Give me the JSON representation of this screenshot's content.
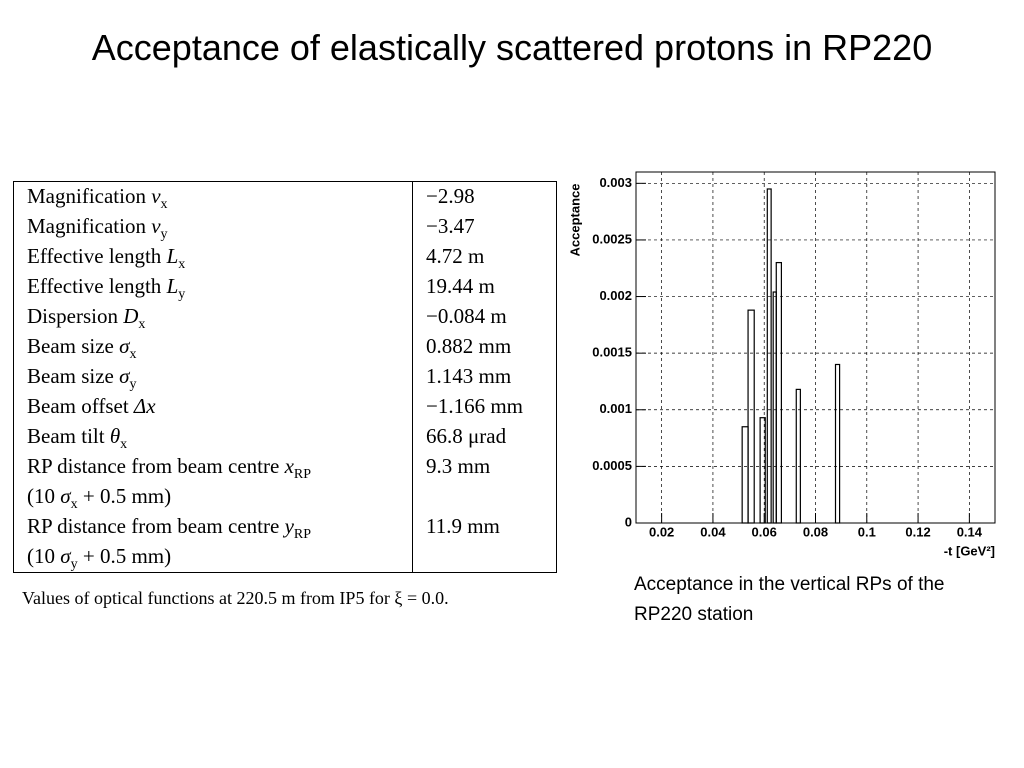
{
  "title": "Acceptance of elastically scattered protons in RP220",
  "table": {
    "rows": [
      {
        "label": "Magnification ",
        "symbol": "v",
        "sub": "x",
        "value": "−2.98"
      },
      {
        "label": "Magnification ",
        "symbol": "v",
        "sub": "y",
        "value": "−3.47"
      },
      {
        "label": "Effective length ",
        "symbol": "L",
        "sub": "x",
        "value": "4.72 m"
      },
      {
        "label": "Effective length ",
        "symbol": "L",
        "sub": "y",
        "value": "19.44 m"
      },
      {
        "label": "Dispersion ",
        "symbol": "D",
        "sub": "x",
        "value": "−0.084 m"
      },
      {
        "label": "Beam size ",
        "symbol": "σ",
        "sub": "x",
        "value": "0.882 mm"
      },
      {
        "label": "Beam size ",
        "symbol": "σ",
        "sub": "y",
        "value": "1.143 mm"
      },
      {
        "label": "Beam offset ",
        "symbol": "Δx",
        "value": "−1.166 mm"
      },
      {
        "label": "Beam tilt ",
        "symbol": "θ",
        "sub": "x",
        "value": "66.8 μrad"
      },
      {
        "label": "RP distance from beam centre ",
        "symbol": "x",
        "sub": "RP",
        "value": "9.3 mm",
        "note": {
          "pre": "(10 ",
          "symbol": "σ",
          "sub": "x",
          "post": " + 0.5 mm)"
        }
      },
      {
        "label": "RP distance from beam centre ",
        "symbol": "y",
        "sub": "RP",
        "value": "11.9 mm",
        "note": {
          "pre": "(10 ",
          "symbol": "σ",
          "sub": "y",
          "post": " + 0.5 mm)"
        }
      }
    ],
    "caption": "Values of optical functions at 220.5 m from IP5 for ξ = 0.0."
  },
  "chart_data": {
    "type": "histogram",
    "ylabel": "Acceptance",
    "xlabel": "-t [GeV²]",
    "bins": [
      0.0514,
      0.0537,
      0.0561,
      0.0584,
      0.0604,
      0.0612,
      0.0627,
      0.0635,
      0.0647,
      0.0667,
      0.0725,
      0.0741,
      0.0878,
      0.0894
    ],
    "values": [
      0.00085,
      0.00188,
      0,
      0.00093,
      0,
      0.00295,
      0,
      0.00204,
      0.0023,
      0,
      0.00118,
      0,
      0.0014
    ],
    "color": "#000000",
    "xlim": [
      0.01,
      0.15
    ],
    "xticks": [
      0.02,
      0.04,
      0.06,
      0.08,
      0.1,
      0.12,
      0.14
    ],
    "ylim": [
      0,
      0.0031
    ],
    "yticks": [
      0,
      0.0005,
      0.001,
      0.0015,
      0.002,
      0.0025,
      0.003
    ],
    "grid": true
  },
  "chart_caption": "Acceptance in the vertical RPs of the RP220 station"
}
